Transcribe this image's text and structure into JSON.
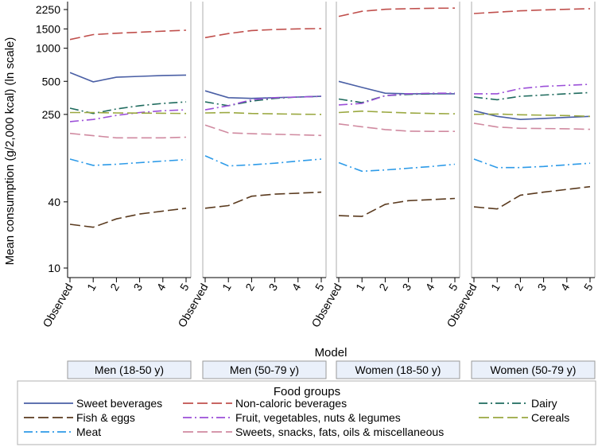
{
  "chart_data": {
    "type": "line",
    "title": "",
    "xlabel": "Model",
    "ylabel": "Mean consumption (g/2,000 kcal) (ln scale)",
    "y_scale": "log",
    "ylim": [
      7,
      2700
    ],
    "y_ticks": [
      10,
      40,
      250,
      500,
      1000,
      1500,
      2250
    ],
    "x_categories": [
      "Observed",
      "1",
      "2",
      "3",
      "4",
      "5"
    ],
    "panels": [
      "Men (18-50 y)",
      "Men (50-79 y)",
      "Women (18-50 y)",
      "Women (50-79 y)"
    ],
    "legend_title": "Food groups",
    "legend_placement": "bottom",
    "series": [
      {
        "name": "Sweet beverages",
        "color": "#4a5fa5",
        "dash": "solid",
        "values": [
          [
            600,
            495,
            545,
            555,
            565,
            570
          ],
          [
            410,
            355,
            350,
            355,
            360,
            365
          ],
          [
            500,
            440,
            390,
            385,
            385,
            385
          ],
          [
            270,
            240,
            225,
            230,
            235,
            240
          ]
        ]
      },
      {
        "name": "Non-caloric beverages",
        "color": "#c0504d",
        "dash": "long-dash",
        "values": [
          [
            1200,
            1330,
            1370,
            1400,
            1430,
            1460
          ],
          [
            1250,
            1360,
            1450,
            1480,
            1500,
            1510
          ],
          [
            1950,
            2170,
            2260,
            2290,
            2310,
            2320
          ],
          [
            2070,
            2130,
            2190,
            2230,
            2260,
            2290
          ]
        ]
      },
      {
        "name": "Dairy",
        "color": "#1f6b5e",
        "dash": "dash-dot",
        "values": [
          [
            285,
            255,
            280,
            300,
            315,
            325
          ],
          [
            325,
            300,
            330,
            350,
            360,
            365
          ],
          [
            345,
            320,
            370,
            380,
            385,
            390
          ],
          [
            360,
            340,
            365,
            375,
            385,
            395
          ]
        ]
      },
      {
        "name": "Fish & eggs",
        "color": "#5a3a1e",
        "dash": "long-dash",
        "values": [
          [
            25,
            23.5,
            28,
            31,
            33,
            35
          ],
          [
            35,
            37,
            45,
            47,
            48,
            49
          ],
          [
            30,
            29.5,
            38,
            41,
            42,
            43
          ],
          [
            36,
            34.5,
            46,
            49,
            52,
            55
          ]
        ]
      },
      {
        "name": "Fruit, vegetables, nuts & legumes",
        "color": "#9b4fd8",
        "dash": "dash-dot",
        "values": [
          [
            215,
            225,
            245,
            260,
            270,
            275
          ],
          [
            275,
            300,
            340,
            355,
            360,
            365
          ],
          [
            305,
            315,
            370,
            385,
            390,
            390
          ],
          [
            385,
            385,
            430,
            450,
            460,
            470
          ]
        ]
      },
      {
        "name": "Cereals",
        "color": "#9aa840",
        "dash": "long-dash",
        "values": [
          [
            260,
            260,
            258,
            257,
            256,
            255
          ],
          [
            258,
            260,
            255,
            253,
            251,
            250
          ],
          [
            260,
            268,
            262,
            258,
            255,
            253
          ],
          [
            250,
            252,
            248,
            246,
            244,
            240
          ]
        ]
      },
      {
        "name": "Meat",
        "color": "#2e9be8",
        "dash": "dash-dot",
        "values": [
          [
            98,
            86,
            88,
            91,
            94,
            97
          ],
          [
            105,
            85,
            87,
            90,
            94,
            98
          ],
          [
            91,
            76,
            78,
            81,
            84,
            88
          ],
          [
            98,
            82,
            82,
            84,
            87,
            90
          ]
        ]
      },
      {
        "name": "Sweets, snacks, fats, oils & miscellaneous",
        "color": "#d08aa0",
        "dash": "long-dash",
        "values": [
          [
            168,
            160,
            153,
            153,
            153,
            155
          ],
          [
            200,
            170,
            167,
            165,
            163,
            161
          ],
          [
            205,
            193,
            182,
            176,
            175,
            175
          ],
          [
            208,
            192,
            187,
            186,
            185,
            183
          ]
        ]
      }
    ],
    "legend_order": [
      "Sweet beverages",
      "Non-caloric beverages",
      "Dairy",
      "Fish & eggs",
      "Fruit, vegetables, nuts & legumes",
      "Cereals",
      "Meat",
      "Sweets, snacks, fats, oils & miscellaneous"
    ]
  }
}
